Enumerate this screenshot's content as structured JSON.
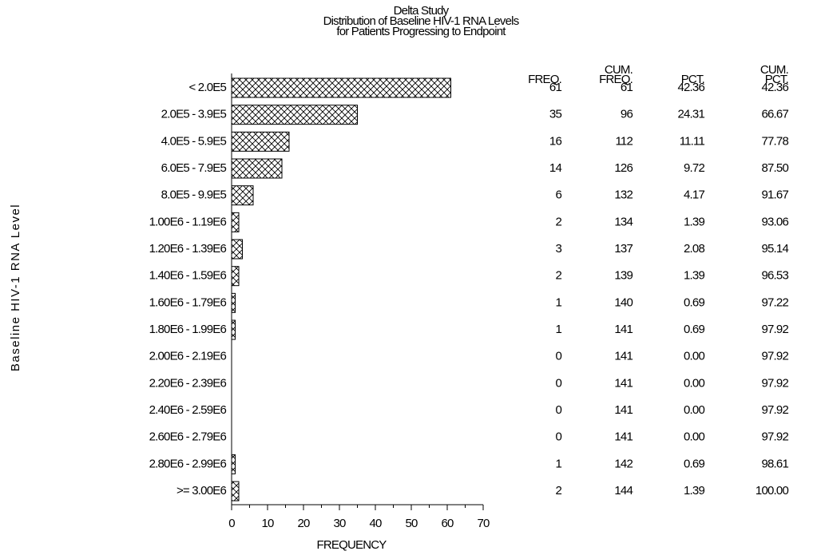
{
  "chart_data": {
    "type": "hbar",
    "title": [
      "Delta Study",
      "Distribution of Baseline HIV-1 RNA Levels",
      "for Patients Progressing to Endpoint"
    ],
    "y_label": "Baseline HIV-1 RNA Level",
    "x_label": "FREQUENCY",
    "categories": [
      "< 2.0E5",
      "2.0E5 - 3.9E5",
      "4.0E5 - 5.9E5",
      "6.0E5 - 7.9E5",
      "8.0E5 - 9.9E5",
      "1.00E6 - 1.19E6",
      "1.20E6 - 1.39E6",
      "1.40E6 - 1.59E6",
      "1.60E6 - 1.79E6",
      "1.80E6 - 1.99E6",
      "2.00E6 - 2.19E6",
      "2.20E6 - 2.39E6",
      "2.40E6 - 2.59E6",
      "2.60E6 - 2.79E6",
      "2.80E6 - 2.99E6",
      ">= 3.00E6"
    ],
    "values": [
      61,
      35,
      16,
      14,
      6,
      2,
      3,
      2,
      1,
      1,
      0,
      0,
      0,
      0,
      1,
      2
    ],
    "xlim": [
      0,
      70
    ],
    "xticks": [
      0,
      10,
      20,
      30,
      40,
      50,
      60,
      70
    ],
    "xminor": [
      5,
      15,
      25,
      35,
      45,
      55,
      65
    ],
    "color": "#000000",
    "pattern": "crosshatch",
    "table": {
      "headers": [
        [
          "FREQ."
        ],
        [
          "CUM.",
          "FREQ."
        ],
        [
          "PCT."
        ],
        [
          "CUM.",
          "PCT."
        ]
      ],
      "cum_freq": [
        61,
        96,
        112,
        126,
        132,
        134,
        137,
        139,
        140,
        141,
        141,
        141,
        141,
        141,
        142,
        144
      ],
      "pct": [
        "42.36",
        "24.31",
        "11.11",
        "9.72",
        "4.17",
        "1.39",
        "2.08",
        "1.39",
        "0.69",
        "0.69",
        "0.00",
        "0.00",
        "0.00",
        "0.00",
        "0.69",
        "1.39"
      ],
      "cum_pct": [
        "42.36",
        "66.67",
        "77.78",
        "87.50",
        "91.67",
        "93.06",
        "95.14",
        "96.53",
        "97.22",
        "97.92",
        "97.92",
        "97.92",
        "97.92",
        "97.92",
        "98.61",
        "100.00"
      ]
    }
  }
}
